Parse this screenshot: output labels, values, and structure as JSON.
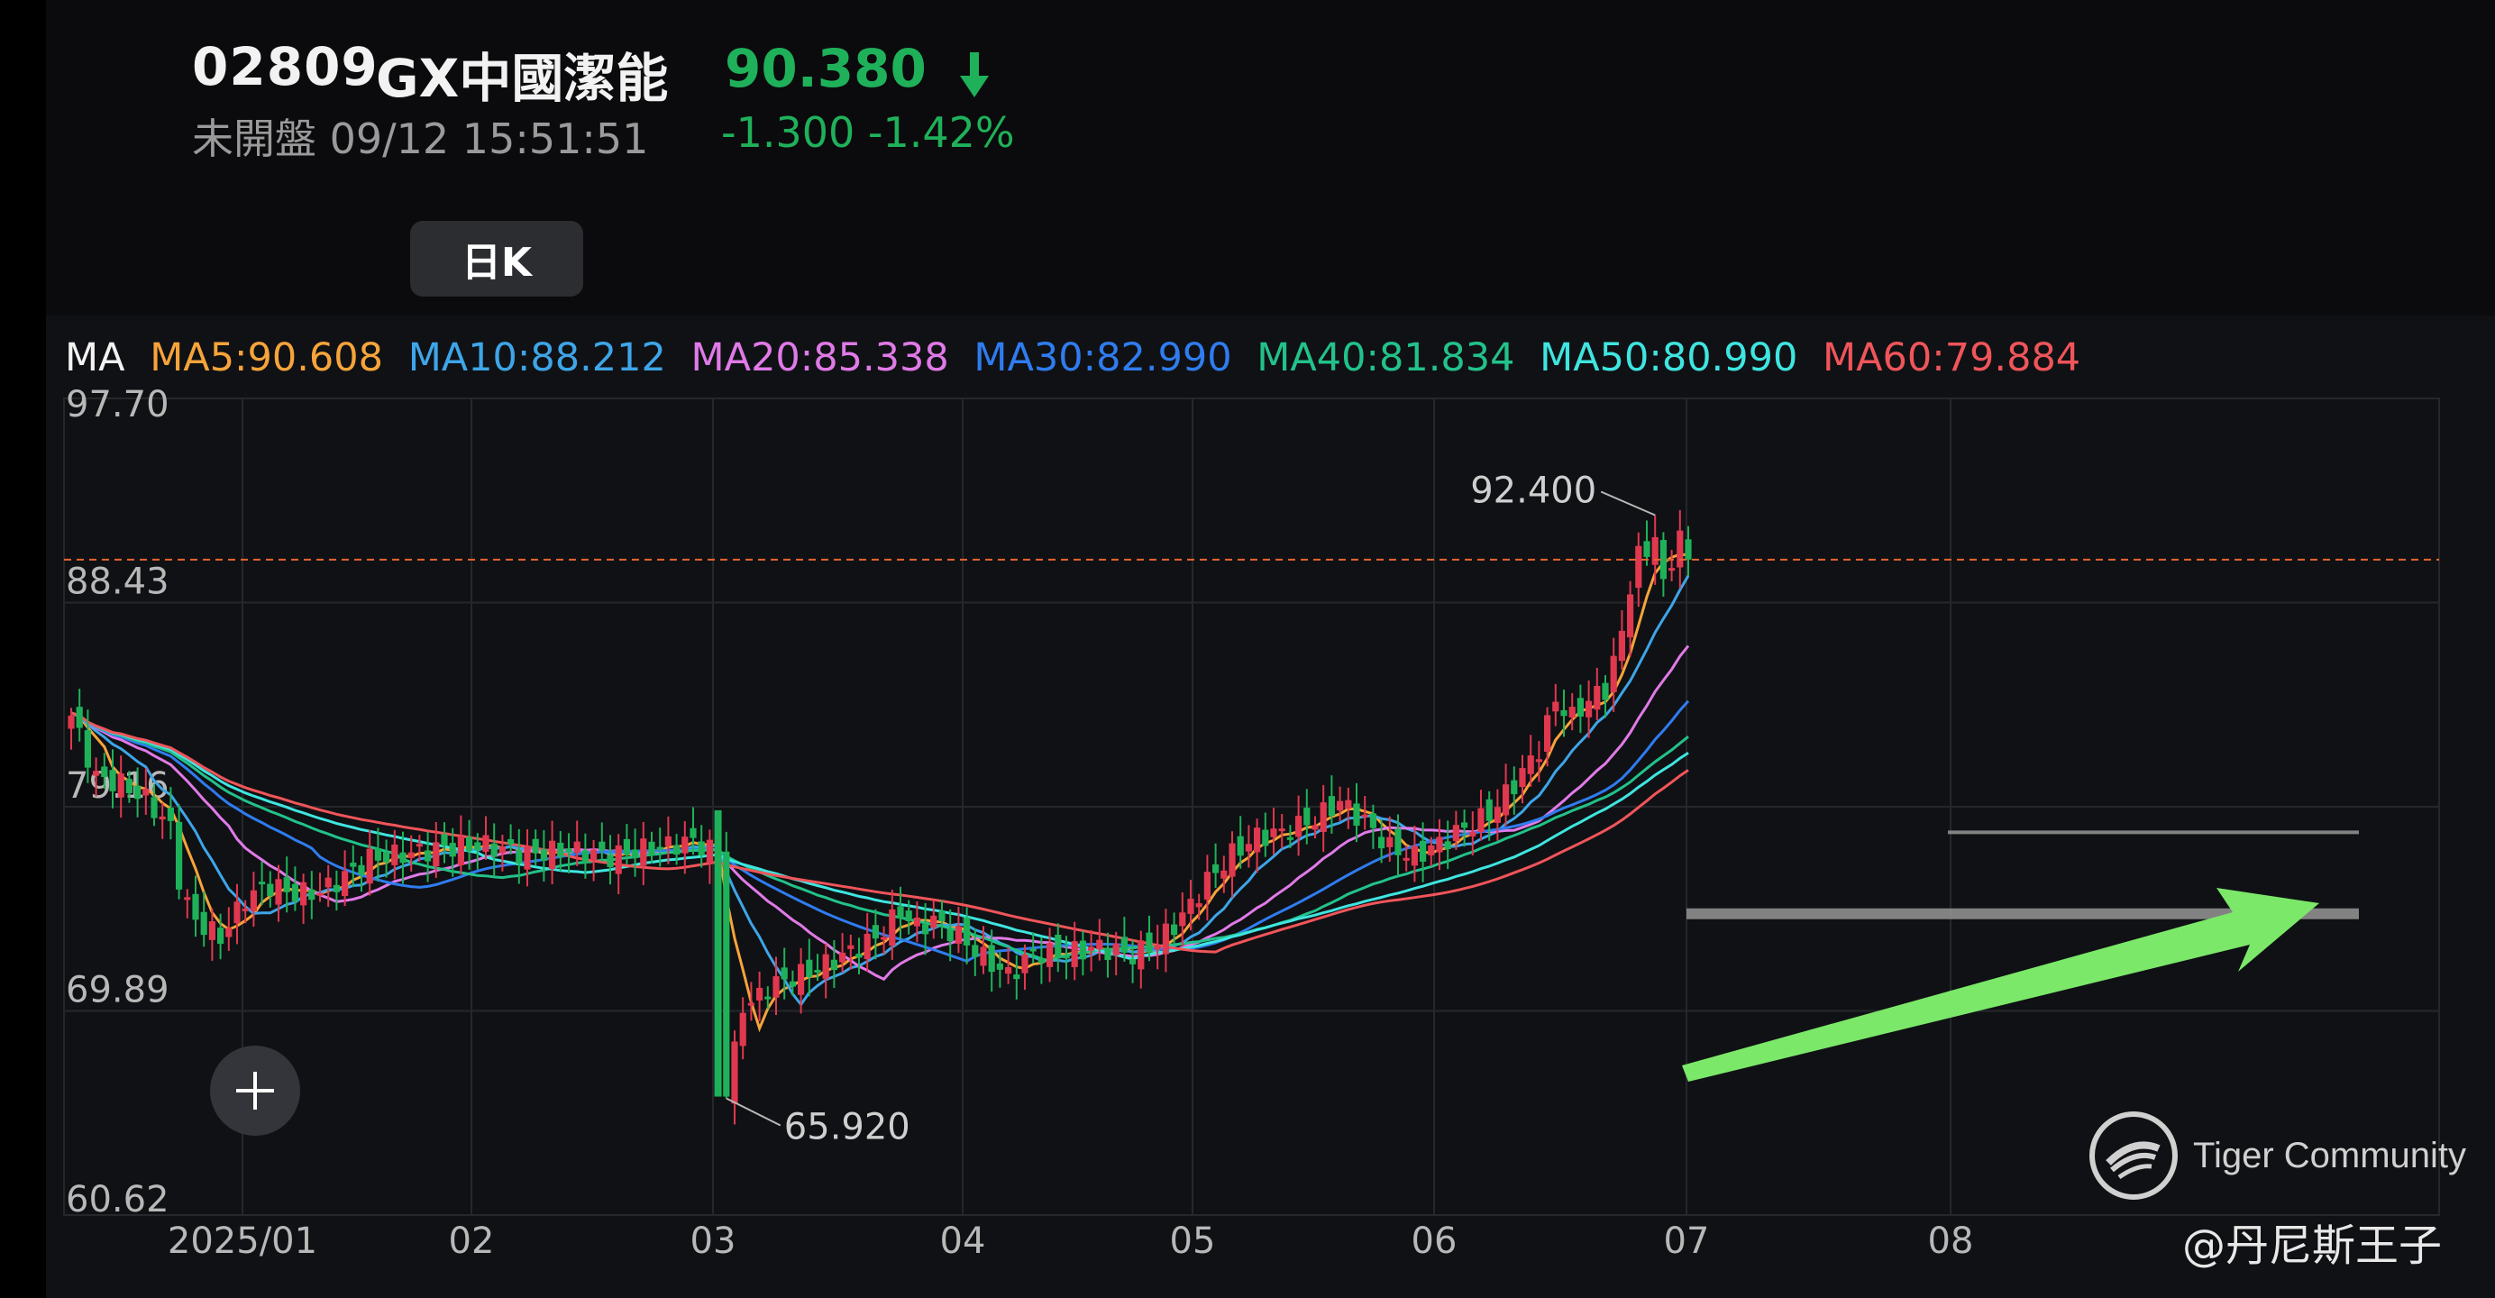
{
  "header": {
    "code": "02809",
    "name": "GX中國潔能",
    "price": "90.380",
    "status": "未開盤 09/12 15:51:51",
    "change": "-1.300 -1.42%",
    "period_button": "日K",
    "price_color": "#1fb15a",
    "price_direction_icon": "arrow-down-icon"
  },
  "ma_legend": {
    "label": "MA",
    "items": [
      {
        "text": "MA5:90.608",
        "color": "#f6a43a"
      },
      {
        "text": "MA10:88.212",
        "color": "#3ea5e8"
      },
      {
        "text": "MA20:85.338",
        "color": "#e07ae8"
      },
      {
        "text": "MA30:82.990",
        "color": "#2f7cf0"
      },
      {
        "text": "MA40:81.834",
        "color": "#22c28a"
      },
      {
        "text": "MA50:80.990",
        "color": "#3fe5e0"
      },
      {
        "text": "MA60:79.884",
        "color": "#f0555a"
      }
    ]
  },
  "chart_data": {
    "type": "candlestick",
    "y_ticks": [
      "97.70",
      "88.43",
      "79.16",
      "69.89",
      "60.62"
    ],
    "ylim": [
      60.62,
      97.7
    ],
    "x_ticks": [
      "2025/01",
      "02",
      "03",
      "04",
      "05",
      "06",
      "07",
      "08"
    ],
    "annotations": {
      "high": "92.400",
      "low": "65.920"
    },
    "last_price_line": 90.38,
    "grid": true,
    "up_color": "#e0384f",
    "down_color": "#1fb15a",
    "close_anchors": [
      [
        0,
        83.3
      ],
      [
        3,
        80.5
      ],
      [
        6,
        80.2
      ],
      [
        9,
        79.5
      ],
      [
        12,
        78.2
      ],
      [
        13,
        75.4
      ],
      [
        15,
        74.0
      ],
      [
        18,
        73.2
      ],
      [
        21,
        75.0
      ],
      [
        24,
        75.6
      ],
      [
        27,
        75.2
      ],
      [
        30,
        75.3
      ],
      [
        33,
        76.0
      ],
      [
        36,
        76.8
      ],
      [
        40,
        77.0
      ],
      [
        45,
        77.3
      ],
      [
        50,
        77.4
      ],
      [
        55,
        77.0
      ],
      [
        60,
        77.2
      ],
      [
        65,
        76.9
      ],
      [
        70,
        77.3
      ],
      [
        75,
        77.6
      ],
      [
        78,
        77.0
      ],
      [
        79,
        66.0
      ],
      [
        80,
        68.5
      ],
      [
        81,
        69.8
      ],
      [
        84,
        71.0
      ],
      [
        87,
        71.4
      ],
      [
        90,
        71.8
      ],
      [
        93,
        72.4
      ],
      [
        97,
        73.2
      ],
      [
        100,
        74.4
      ],
      [
        102,
        73.7
      ],
      [
        104,
        74.0
      ],
      [
        107,
        73.3
      ],
      [
        110,
        72.3
      ],
      [
        113,
        71.5
      ],
      [
        116,
        72.5
      ],
      [
        120,
        72.5
      ],
      [
        124,
        72.8
      ],
      [
        128,
        72.4
      ],
      [
        131,
        73.0
      ],
      [
        134,
        74.2
      ],
      [
        137,
        75.8
      ],
      [
        140,
        77.0
      ],
      [
        143,
        77.8
      ],
      [
        146,
        78.0
      ],
      [
        150,
        78.6
      ],
      [
        153,
        79.4
      ],
      [
        156,
        78.5
      ],
      [
        159,
        77.3
      ],
      [
        162,
        76.9
      ],
      [
        165,
        77.5
      ],
      [
        168,
        78.2
      ],
      [
        171,
        78.8
      ],
      [
        174,
        80.2
      ],
      [
        177,
        81.8
      ],
      [
        179,
        84.0
      ],
      [
        181,
        83.2
      ],
      [
        183,
        84.0
      ],
      [
        185,
        84.5
      ],
      [
        187,
        87.0
      ],
      [
        188,
        88.8
      ],
      [
        189,
        91.0
      ],
      [
        190,
        90.5
      ],
      [
        191,
        91.4
      ],
      [
        192,
        89.5
      ],
      [
        193,
        90.0
      ],
      [
        194,
        91.7
      ],
      [
        195,
        90.38
      ]
    ],
    "grey_levels": [
      {
        "value": 78.0,
        "from_month": "08"
      },
      {
        "value": 74.3,
        "from_month": "07"
      }
    ],
    "series": [
      {
        "name": "MA5",
        "period": 5,
        "color": "#f6a43a"
      },
      {
        "name": "MA10",
        "period": 10,
        "color": "#3ea5e8"
      },
      {
        "name": "MA20",
        "period": 20,
        "color": "#e07ae8"
      },
      {
        "name": "MA30",
        "period": 30,
        "color": "#2f7cf0"
      },
      {
        "name": "MA40",
        "period": 40,
        "color": "#22c28a"
      },
      {
        "name": "MA50",
        "period": 50,
        "color": "#3fe5e0"
      },
      {
        "name": "MA60",
        "period": 60,
        "color": "#f0555a"
      }
    ]
  },
  "controls": {
    "add_icon": "plus-icon"
  },
  "watermark": {
    "text": "Tiger Community",
    "icon": "tiger-logo-icon"
  },
  "author": "@丹尼斯王子",
  "trend_arrow": {
    "icon": "trend-arrow-icon",
    "color": "#7be86a"
  }
}
